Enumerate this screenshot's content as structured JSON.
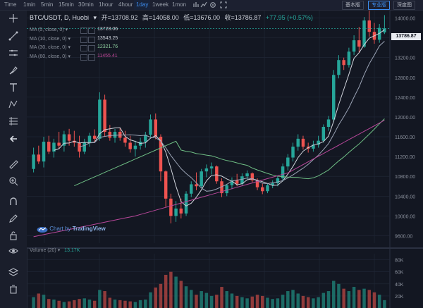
{
  "topbar": {
    "intervals": [
      {
        "label": "Time",
        "active": false
      },
      {
        "label": "1min",
        "active": false
      },
      {
        "label": "5min",
        "active": false
      },
      {
        "label": "15min",
        "active": false
      },
      {
        "label": "30min",
        "active": false
      },
      {
        "label": "1hour",
        "active": false
      },
      {
        "label": "4hour",
        "active": false
      },
      {
        "label": "1day",
        "active": true
      },
      {
        "label": "1week",
        "active": false
      },
      {
        "label": "1mon",
        "active": false
      }
    ],
    "right_buttons": [
      {
        "label": "基本版",
        "active": false
      },
      {
        "label": "专业版",
        "active": true
      },
      {
        "label": "深度图",
        "active": false
      }
    ]
  },
  "legend": {
    "symbol": "BTC/USDT, D, Huobi",
    "open": "开=13708.92",
    "high": "高=14058.00",
    "low": "低=13676.00",
    "close": "收=13786.87",
    "change": "+77.95 (+0.57%)",
    "ma": [
      {
        "label": "MA (5, close, 0)",
        "value": "13728.06",
        "color": "#d0d4dc"
      },
      {
        "label": "MA (10, close, 0)",
        "value": "13543.25",
        "color": "#d0d4dc"
      },
      {
        "label": "MA (30, close, 0)",
        "value": "12321.76",
        "color": "#8fd0a0"
      },
      {
        "label": "MA (60, close, 0)",
        "value": "11455.41",
        "color": "#c04a9a"
      }
    ],
    "volume_label": "Volume (20)",
    "volume_value": "13.17K"
  },
  "watermark": {
    "prefix": "Chart by ",
    "brand": "TradingView"
  },
  "price_tag": "13786.87",
  "colors": {
    "up": "#26a69a",
    "down": "#ef5350",
    "bg": "#131722",
    "grid": "#222838"
  },
  "chart_data": {
    "type": "candlestick",
    "price_axis_ticks": [
      14000,
      13600,
      13200,
      12800,
      12400,
      12000,
      11600,
      11200,
      10800,
      10400,
      10000,
      9600
    ],
    "volume_axis_ticks": [
      "80K",
      "60K",
      "40K",
      "20K"
    ],
    "ylim": [
      9450,
      14150
    ],
    "candles": [
      [
        10950,
        11380,
        10880,
        11240
      ],
      [
        11240,
        11420,
        11050,
        11100
      ],
      [
        11100,
        11600,
        10980,
        11500
      ],
      [
        11500,
        11620,
        11250,
        11300
      ],
      [
        11300,
        11560,
        11180,
        11480
      ],
      [
        11480,
        11700,
        11350,
        11420
      ],
      [
        11420,
        11720,
        11300,
        11650
      ],
      [
        11650,
        11760,
        11420,
        11520
      ],
      [
        11520,
        11720,
        11400,
        11480
      ],
      [
        11480,
        11620,
        11180,
        11300
      ],
      [
        11300,
        11560,
        11250,
        11480
      ],
      [
        11480,
        11680,
        11400,
        11620
      ],
      [
        11620,
        11750,
        11480,
        11560
      ],
      [
        11560,
        12500,
        11520,
        12350
      ],
      [
        12350,
        12450,
        11600,
        11700
      ],
      [
        11700,
        11840,
        11520,
        11580
      ],
      [
        11580,
        11760,
        11480,
        11700
      ],
      [
        11700,
        11780,
        11520,
        11580
      ],
      [
        11580,
        11720,
        11400,
        11480
      ],
      [
        11480,
        11620,
        11280,
        11350
      ],
      [
        11350,
        11520,
        11200,
        11420
      ],
      [
        11420,
        11580,
        11340,
        11500
      ],
      [
        11500,
        11700,
        11380,
        11640
      ],
      [
        11640,
        12050,
        11600,
        11950
      ],
      [
        11950,
        12070,
        11550,
        11600
      ],
      [
        11600,
        11650,
        10700,
        10900
      ],
      [
        10900,
        10920,
        10180,
        10350
      ],
      [
        10350,
        10450,
        9850,
        10000
      ],
      [
        10000,
        10300,
        9880,
        10150
      ],
      [
        10150,
        10350,
        9950,
        10050
      ],
      [
        10050,
        10500,
        10000,
        10450
      ],
      [
        10450,
        10700,
        10380,
        10640
      ],
      [
        10640,
        10880,
        10520,
        10600
      ],
      [
        10600,
        10950,
        10560,
        10900
      ],
      [
        10900,
        11040,
        10780,
        10960
      ],
      [
        10960,
        11080,
        10840,
        11000
      ],
      [
        11000,
        11020,
        10650,
        10700
      ],
      [
        10700,
        10760,
        10380,
        10460
      ],
      [
        10460,
        10650,
        10400,
        10620
      ],
      [
        10620,
        10780,
        10540,
        10720
      ],
      [
        10720,
        10850,
        10600,
        10650
      ],
      [
        10650,
        10860,
        10620,
        10800
      ],
      [
        10800,
        10920,
        10740,
        10860
      ],
      [
        10860,
        10880,
        10680,
        10720
      ],
      [
        10720,
        10760,
        10520,
        10580
      ],
      [
        10580,
        10650,
        10440,
        10500
      ],
      [
        10500,
        10650,
        10460,
        10620
      ],
      [
        10620,
        10720,
        10560,
        10660
      ],
      [
        10660,
        10800,
        10600,
        10760
      ],
      [
        10760,
        11060,
        10700,
        11000
      ],
      [
        11000,
        11250,
        10920,
        11180
      ],
      [
        11180,
        11480,
        11100,
        11400
      ],
      [
        11400,
        11650,
        11320,
        11560
      ],
      [
        11560,
        11620,
        11340,
        11400
      ],
      [
        11400,
        11480,
        11280,
        11360
      ],
      [
        11360,
        11520,
        11300,
        11440
      ],
      [
        11440,
        11620,
        11380,
        11520
      ],
      [
        11520,
        11850,
        11480,
        11800
      ],
      [
        11800,
        12020,
        11720,
        11950
      ],
      [
        11950,
        12950,
        11900,
        12850
      ],
      [
        12850,
        13250,
        12780,
        13150
      ],
      [
        13150,
        13200,
        12950,
        13050
      ],
      [
        13050,
        13400,
        13000,
        13320
      ],
      [
        13320,
        13650,
        13250,
        13550
      ],
      [
        13550,
        13820,
        13300,
        13420
      ],
      [
        13420,
        14020,
        13400,
        13950
      ],
      [
        13950,
        14180,
        13620,
        13720
      ],
      [
        13720,
        13900,
        13480,
        13560
      ],
      [
        13560,
        13880,
        13500,
        13800
      ],
      [
        13708.92,
        14058,
        13676,
        13786.87
      ]
    ],
    "volumes": [
      18,
      24,
      22,
      15,
      14,
      12,
      10,
      11,
      13,
      15,
      16,
      14,
      12,
      30,
      28,
      17,
      14,
      13,
      12,
      11,
      10,
      13,
      14,
      26,
      34,
      40,
      55,
      60,
      52,
      45,
      36,
      30,
      22,
      28,
      25,
      20,
      22,
      35,
      28,
      24,
      20,
      18,
      16,
      19,
      22,
      20,
      17,
      15,
      16,
      22,
      28,
      30,
      24,
      20,
      18,
      16,
      18,
      25,
      28,
      45,
      40,
      32,
      28,
      35,
      30,
      32,
      30,
      26,
      22,
      13
    ]
  }
}
